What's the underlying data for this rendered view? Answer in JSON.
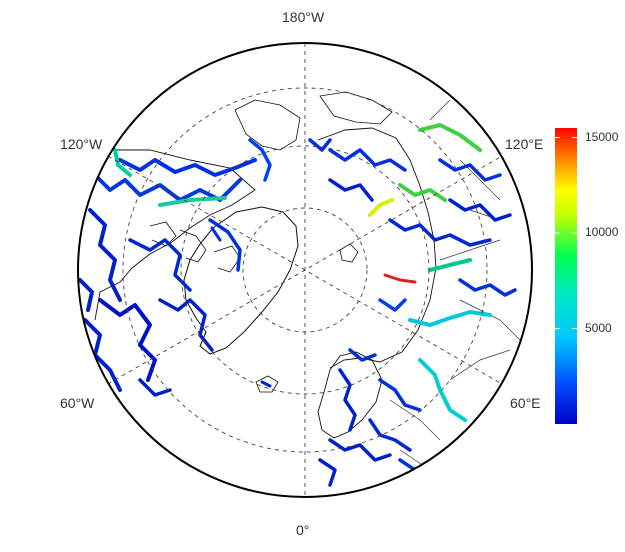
{
  "map": {
    "projection": "north polar stereographic",
    "longitude_labels": {
      "top": "180°W",
      "bottom": "0°",
      "left_upper": "120°W",
      "left_lower": "60°W",
      "right_upper": "120°E",
      "right_lower": "60°E"
    },
    "graticule_style": "dashed"
  },
  "colorbar": {
    "ticks": [
      "15000",
      "10000",
      "5000"
    ],
    "tick_values": [
      15000,
      10000,
      5000
    ],
    "range": [
      0,
      15500
    ],
    "colors": [
      "#0000c8",
      "#0050ff",
      "#00c8ff",
      "#00ff80",
      "#c8ff00",
      "#ffff00",
      "#ff8000",
      "#ff0000"
    ]
  }
}
